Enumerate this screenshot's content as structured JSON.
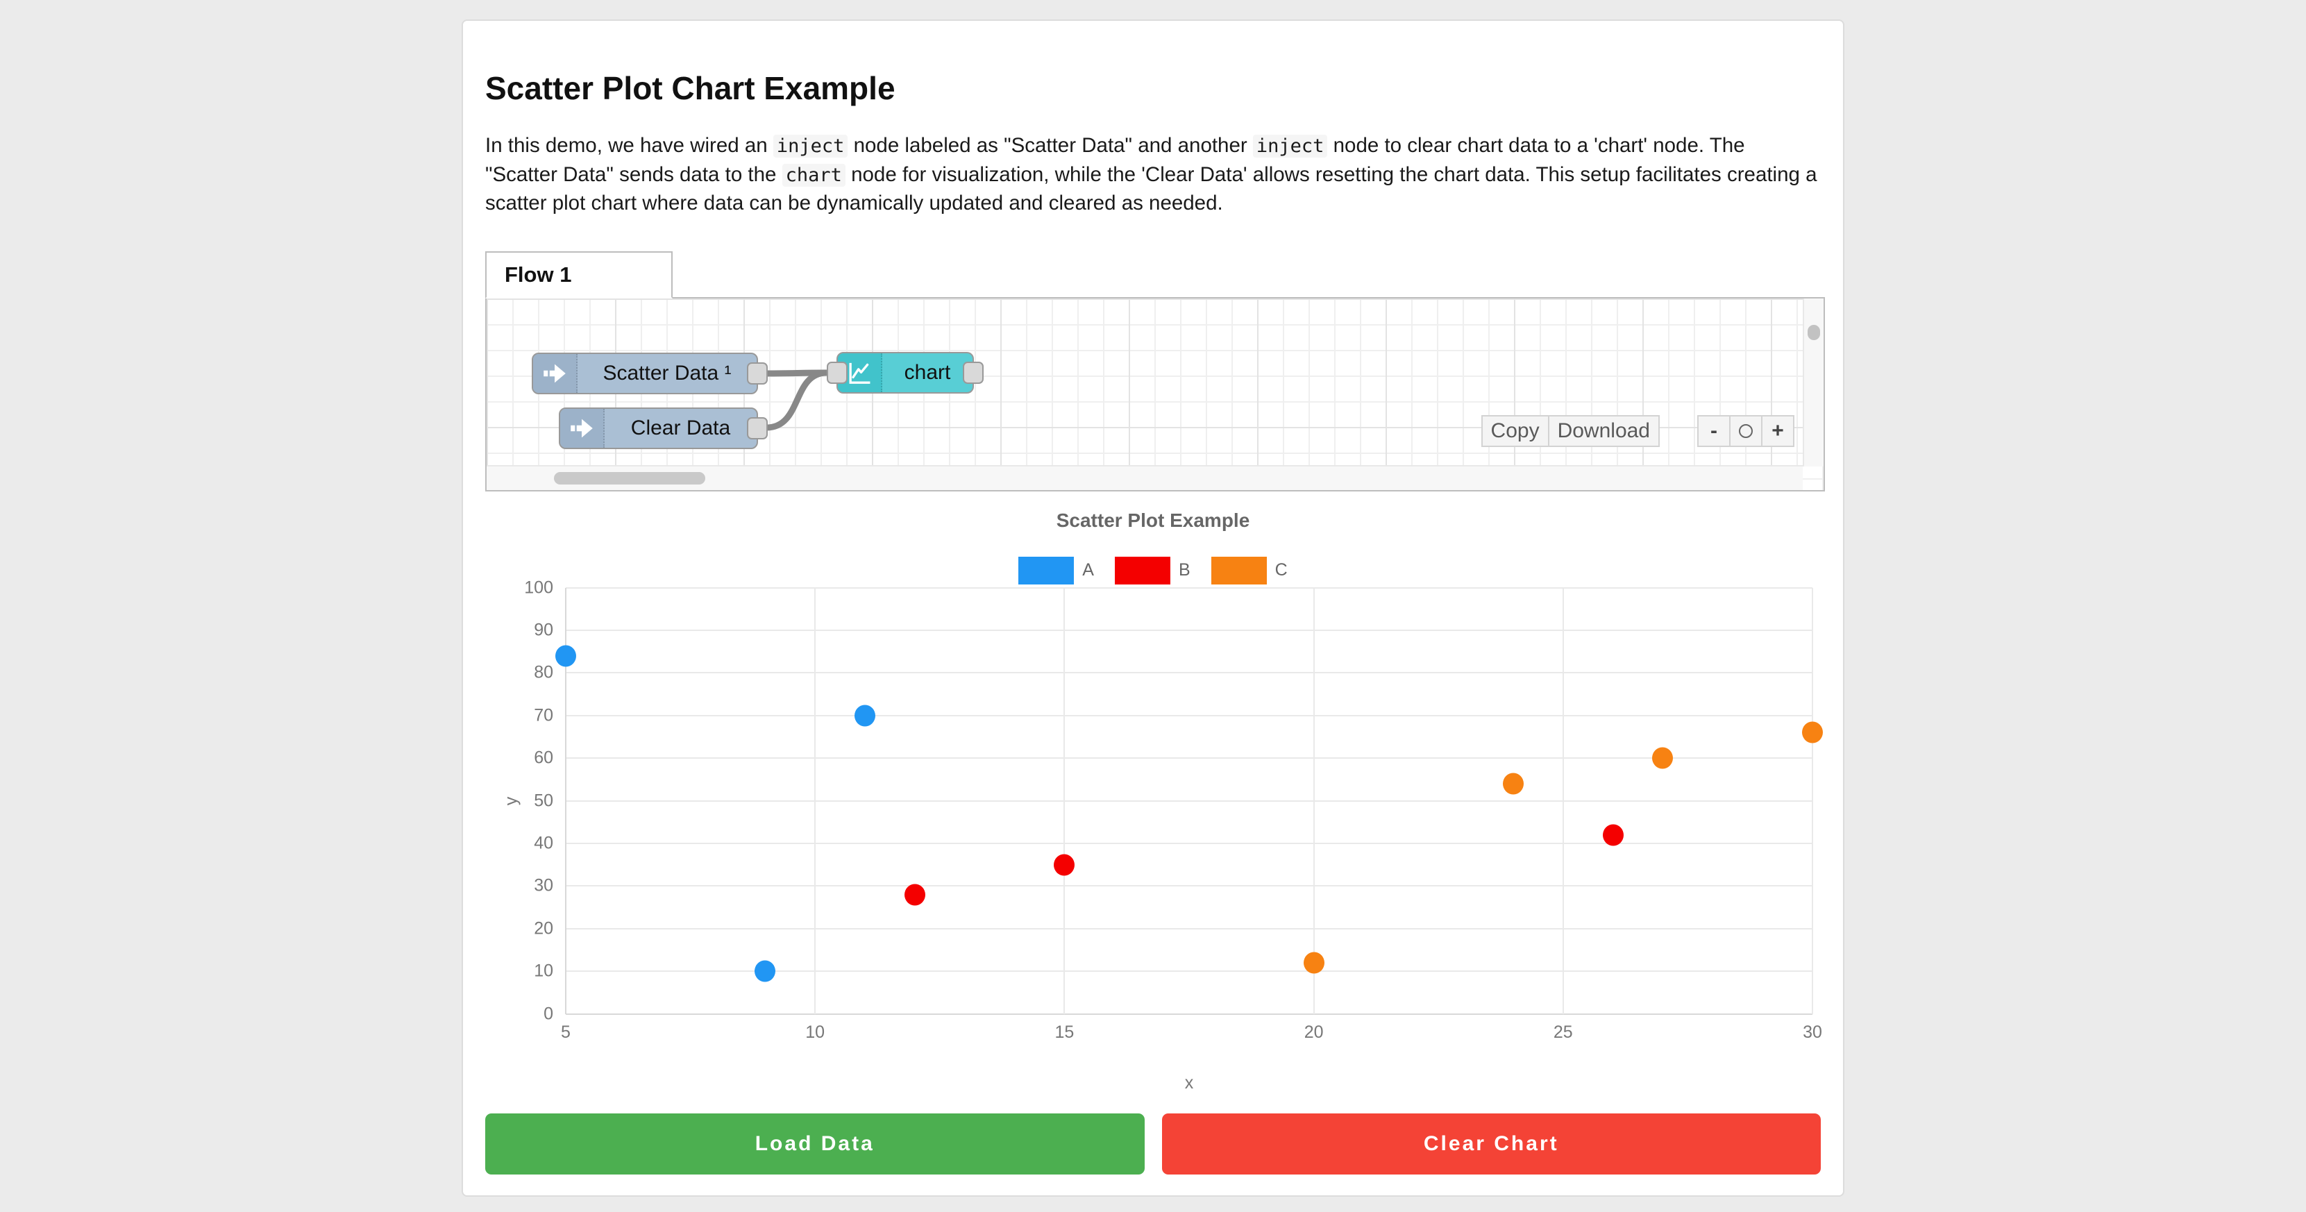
{
  "header": {
    "title": "Scatter Plot Chart Example"
  },
  "description": {
    "segments": [
      {
        "code": false,
        "text": "In this demo, we have wired an "
      },
      {
        "code": true,
        "text": "inject"
      },
      {
        "code": false,
        "text": " node labeled as \"Scatter Data\" and another "
      },
      {
        "code": true,
        "text": "inject"
      },
      {
        "code": false,
        "text": " node to clear chart data to a 'chart' node. The \"Scatter Data\" sends data to the "
      },
      {
        "code": true,
        "text": "chart"
      },
      {
        "code": false,
        "text": " node for visualization, while the 'Clear Data' allows resetting the chart data. This setup facilitates creating a scatter plot chart where data can be dynamically updated and cleared as needed."
      }
    ]
  },
  "flow_editor": {
    "tab_label": "Flow 1",
    "nodes": {
      "scatter_inject": {
        "label": "Scatter Data ¹",
        "type": "inject"
      },
      "clear_inject": {
        "label": "Clear Data",
        "type": "inject"
      },
      "chart_node": {
        "label": "chart",
        "type": "chart"
      }
    },
    "toolbar": {
      "copy_label": "Copy",
      "download_label": "Download",
      "zoom_out_label": "-",
      "zoom_in_label": "+"
    },
    "colors": {
      "inject_fill": "#aabfd4",
      "chart_fill": "#58ced5",
      "wire": "#888888"
    }
  },
  "chart_data": {
    "type": "scatter",
    "title": "Scatter Plot Example",
    "xlabel": "x",
    "ylabel": "y",
    "xlim": [
      5,
      30
    ],
    "ylim": [
      0,
      100
    ],
    "x_ticks": [
      5,
      10,
      15,
      20,
      25,
      30
    ],
    "y_ticks": [
      0,
      10,
      20,
      30,
      40,
      50,
      60,
      70,
      80,
      90,
      100
    ],
    "grid": true,
    "legend_position": "top",
    "series": [
      {
        "name": "A",
        "color": "#2196f3",
        "points": [
          [
            5,
            84
          ],
          [
            9,
            10
          ],
          [
            11,
            70
          ]
        ]
      },
      {
        "name": "B",
        "color": "#f40000",
        "points": [
          [
            12,
            28
          ],
          [
            15,
            35
          ],
          [
            26,
            42
          ]
        ]
      },
      {
        "name": "C",
        "color": "#f78212",
        "points": [
          [
            20,
            12
          ],
          [
            24,
            54
          ],
          [
            27,
            60
          ],
          [
            30,
            66
          ]
        ]
      }
    ]
  },
  "actions": {
    "load_label": "Load Data",
    "load_color": "#4caf50",
    "clear_label": "Clear Chart",
    "clear_color": "#f44336"
  }
}
